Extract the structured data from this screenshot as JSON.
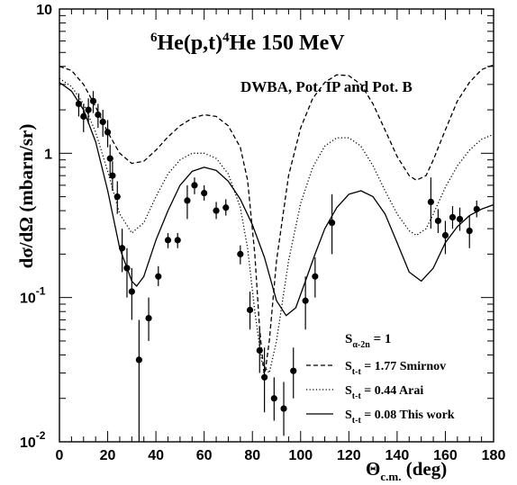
{
  "chart_data": {
    "type": "scatter",
    "title": "⁶He(p,t)⁴He  150 MeV",
    "title_parts": {
      "pre_sup": "6",
      "mid": "He(p,t)",
      "mid_sup": "4",
      "post": "He   150 MeV"
    },
    "subtitle": "DWBA, Pot. IP and Pot. B",
    "xlabel": "Θc.m. (deg)",
    "xlabel_parts": {
      "main": "Θ",
      "sub": "c.m.",
      "unit": "(deg)"
    },
    "ylabel": "dσ/dΩ (mbarn/sr)",
    "xlim": [
      0,
      180
    ],
    "ylim": [
      0.01,
      10
    ],
    "yscale": "log",
    "grid": false,
    "legend_position": "bottom-right",
    "x_ticks": [
      "0",
      "20",
      "40",
      "60",
      "80",
      "100",
      "120",
      "140",
      "160",
      "180"
    ],
    "x_tick_values": [
      0,
      20,
      40,
      60,
      80,
      100,
      120,
      140,
      160,
      180
    ],
    "y_tick_labels": [
      {
        "value": 10,
        "base": "10",
        "exp": ""
      },
      {
        "value": 1,
        "base": "1",
        "exp": ""
      },
      {
        "value": 0.1,
        "base": "10",
        "exp": "-1"
      },
      {
        "value": 0.01,
        "base": "10",
        "exp": "-2"
      }
    ],
    "legend_header": {
      "main": "S",
      "sub": "α-2n",
      "value": " = 1"
    },
    "series": [
      {
        "name": "S t-t = 1.77 Smirnov",
        "legend": {
          "sub": "t-t",
          "text": " = 1.77  Smirnov"
        },
        "style": "dashed",
        "points": [
          [
            0,
            4.0
          ],
          [
            5,
            3.75
          ],
          [
            10,
            3.0
          ],
          [
            15,
            2.1
          ],
          [
            20,
            1.4
          ],
          [
            25,
            1.0
          ],
          [
            30,
            0.85
          ],
          [
            35,
            0.88
          ],
          [
            40,
            1.05
          ],
          [
            45,
            1.3
          ],
          [
            50,
            1.55
          ],
          [
            55,
            1.75
          ],
          [
            60,
            1.85
          ],
          [
            65,
            1.8
          ],
          [
            70,
            1.55
          ],
          [
            75,
            1.1
          ],
          [
            78,
            0.65
          ],
          [
            81,
            0.2
          ],
          [
            83,
            0.06
          ],
          [
            85,
            0.028
          ],
          [
            87,
            0.05
          ],
          [
            90,
            0.18
          ],
          [
            95,
            0.7
          ],
          [
            100,
            1.5
          ],
          [
            105,
            2.4
          ],
          [
            110,
            3.1
          ],
          [
            115,
            3.5
          ],
          [
            120,
            3.45
          ],
          [
            125,
            3.0
          ],
          [
            130,
            2.2
          ],
          [
            135,
            1.45
          ],
          [
            140,
            0.95
          ],
          [
            145,
            0.7
          ],
          [
            148,
            0.65
          ],
          [
            152,
            0.7
          ],
          [
            155,
            0.9
          ],
          [
            160,
            1.45
          ],
          [
            165,
            2.3
          ],
          [
            170,
            3.1
          ],
          [
            175,
            3.8
          ],
          [
            180,
            4.1
          ]
        ]
      },
      {
        "name": "S t-t = 0.44 Arai",
        "legend": {
          "sub": "t-t",
          "text": " = 0.44  Arai"
        },
        "style": "dotted",
        "points": [
          [
            0,
            3.3
          ],
          [
            5,
            2.9
          ],
          [
            10,
            2.2
          ],
          [
            15,
            1.4
          ],
          [
            20,
            0.75
          ],
          [
            25,
            0.38
          ],
          [
            30,
            0.28
          ],
          [
            35,
            0.33
          ],
          [
            40,
            0.5
          ],
          [
            45,
            0.72
          ],
          [
            50,
            0.9
          ],
          [
            55,
            1.0
          ],
          [
            60,
            1.0
          ],
          [
            65,
            0.92
          ],
          [
            70,
            0.72
          ],
          [
            75,
            0.42
          ],
          [
            78,
            0.22
          ],
          [
            81,
            0.08
          ],
          [
            84,
            0.035
          ],
          [
            87,
            0.03
          ],
          [
            90,
            0.05
          ],
          [
            95,
            0.18
          ],
          [
            100,
            0.45
          ],
          [
            105,
            0.8
          ],
          [
            110,
            1.12
          ],
          [
            115,
            1.28
          ],
          [
            120,
            1.28
          ],
          [
            125,
            1.12
          ],
          [
            130,
            0.82
          ],
          [
            135,
            0.55
          ],
          [
            140,
            0.38
          ],
          [
            145,
            0.29
          ],
          [
            148,
            0.27
          ],
          [
            152,
            0.3
          ],
          [
            155,
            0.38
          ],
          [
            160,
            0.58
          ],
          [
            165,
            0.82
          ],
          [
            170,
            1.05
          ],
          [
            175,
            1.25
          ],
          [
            180,
            1.35
          ]
        ]
      },
      {
        "name": "S t-t = 0.08 This work",
        "legend": {
          "sub": "t-t",
          "text": " = 0.08  This work"
        },
        "style": "solid",
        "points": [
          [
            0,
            3.1
          ],
          [
            5,
            2.7
          ],
          [
            10,
            2.0
          ],
          [
            15,
            1.2
          ],
          [
            20,
            0.55
          ],
          [
            25,
            0.22
          ],
          [
            30,
            0.13
          ],
          [
            32,
            0.12
          ],
          [
            35,
            0.14
          ],
          [
            40,
            0.25
          ],
          [
            45,
            0.4
          ],
          [
            50,
            0.6
          ],
          [
            55,
            0.75
          ],
          [
            60,
            0.8
          ],
          [
            65,
            0.76
          ],
          [
            70,
            0.64
          ],
          [
            75,
            0.48
          ],
          [
            80,
            0.32
          ],
          [
            85,
            0.19
          ],
          [
            90,
            0.095
          ],
          [
            94,
            0.075
          ],
          [
            98,
            0.085
          ],
          [
            102,
            0.13
          ],
          [
            106,
            0.2
          ],
          [
            110,
            0.3
          ],
          [
            115,
            0.42
          ],
          [
            120,
            0.52
          ],
          [
            125,
            0.55
          ],
          [
            130,
            0.5
          ],
          [
            135,
            0.38
          ],
          [
            140,
            0.24
          ],
          [
            145,
            0.15
          ],
          [
            150,
            0.13
          ],
          [
            155,
            0.16
          ],
          [
            160,
            0.24
          ],
          [
            165,
            0.31
          ],
          [
            170,
            0.37
          ],
          [
            175,
            0.41
          ],
          [
            180,
            0.44
          ]
        ]
      }
    ],
    "data_points": [
      {
        "x": 8,
        "y": 2.2,
        "ylo": 1.8,
        "yhi": 2.6
      },
      {
        "x": 10,
        "y": 1.8,
        "ylo": 1.4,
        "yhi": 2.2
      },
      {
        "x": 12,
        "y": 2.0,
        "ylo": 1.6,
        "yhi": 2.4
      },
      {
        "x": 14,
        "y": 2.3,
        "ylo": 1.9,
        "yhi": 2.7
      },
      {
        "x": 16,
        "y": 1.85,
        "ylo": 1.5,
        "yhi": 2.2
      },
      {
        "x": 18,
        "y": 1.65,
        "ylo": 1.3,
        "yhi": 2.0
      },
      {
        "x": 20,
        "y": 1.4,
        "ylo": 1.1,
        "yhi": 1.7
      },
      {
        "x": 21,
        "y": 0.92,
        "ylo": 0.7,
        "yhi": 1.15
      },
      {
        "x": 22,
        "y": 0.7,
        "ylo": 0.55,
        "yhi": 0.88
      },
      {
        "x": 24,
        "y": 0.5,
        "ylo": 0.38,
        "yhi": 0.64
      },
      {
        "x": 26,
        "y": 0.22,
        "ylo": 0.15,
        "yhi": 0.3
      },
      {
        "x": 28,
        "y": 0.16,
        "ylo": 0.1,
        "yhi": 0.22
      },
      {
        "x": 30,
        "y": 0.11,
        "ylo": 0.07,
        "yhi": 0.16
      },
      {
        "x": 33,
        "y": 0.037,
        "ylo": 0.01,
        "yhi": 0.07
      },
      {
        "x": 37,
        "y": 0.072,
        "ylo": 0.05,
        "yhi": 0.1
      },
      {
        "x": 41,
        "y": 0.14,
        "ylo": 0.12,
        "yhi": 0.165
      },
      {
        "x": 45,
        "y": 0.25,
        "ylo": 0.22,
        "yhi": 0.28
      },
      {
        "x": 49,
        "y": 0.25,
        "ylo": 0.22,
        "yhi": 0.28
      },
      {
        "x": 53,
        "y": 0.47,
        "ylo": 0.35,
        "yhi": 0.6
      },
      {
        "x": 56,
        "y": 0.6,
        "ylo": 0.52,
        "yhi": 0.68
      },
      {
        "x": 60,
        "y": 0.53,
        "ylo": 0.47,
        "yhi": 0.6
      },
      {
        "x": 65,
        "y": 0.4,
        "ylo": 0.35,
        "yhi": 0.46
      },
      {
        "x": 69,
        "y": 0.42,
        "ylo": 0.37,
        "yhi": 0.48
      },
      {
        "x": 75,
        "y": 0.2,
        "ylo": 0.17,
        "yhi": 0.23
      },
      {
        "x": 79,
        "y": 0.082,
        "ylo": 0.06,
        "yhi": 0.11
      },
      {
        "x": 83,
        "y": 0.043,
        "ylo": 0.03,
        "yhi": 0.06
      },
      {
        "x": 85,
        "y": 0.028,
        "ylo": 0.016,
        "yhi": 0.045
      },
      {
        "x": 89,
        "y": 0.02,
        "ylo": 0.014,
        "yhi": 0.028
      },
      {
        "x": 93,
        "y": 0.017,
        "ylo": 0.011,
        "yhi": 0.026
      },
      {
        "x": 97,
        "y": 0.031,
        "ylo": 0.02,
        "yhi": 0.045
      },
      {
        "x": 102,
        "y": 0.095,
        "ylo": 0.06,
        "yhi": 0.14
      },
      {
        "x": 106,
        "y": 0.14,
        "ylo": 0.1,
        "yhi": 0.19
      },
      {
        "x": 113,
        "y": 0.33,
        "ylo": 0.2,
        "yhi": 0.52
      },
      {
        "x": 154,
        "y": 0.46,
        "ylo": 0.3,
        "yhi": 0.68
      },
      {
        "x": 157,
        "y": 0.34,
        "ylo": 0.28,
        "yhi": 0.41
      },
      {
        "x": 160,
        "y": 0.27,
        "ylo": 0.2,
        "yhi": 0.34
      },
      {
        "x": 163,
        "y": 0.36,
        "ylo": 0.3,
        "yhi": 0.43
      },
      {
        "x": 166,
        "y": 0.35,
        "ylo": 0.29,
        "yhi": 0.42
      },
      {
        "x": 170,
        "y": 0.29,
        "ylo": 0.22,
        "yhi": 0.37
      },
      {
        "x": 173,
        "y": 0.41,
        "ylo": 0.36,
        "yhi": 0.47
      }
    ]
  }
}
